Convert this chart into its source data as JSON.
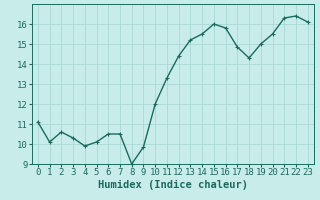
{
  "x": [
    0,
    1,
    2,
    3,
    4,
    5,
    6,
    7,
    8,
    9,
    10,
    11,
    12,
    13,
    14,
    15,
    16,
    17,
    18,
    19,
    20,
    21,
    22,
    23
  ],
  "y": [
    11.1,
    10.1,
    10.6,
    10.3,
    9.9,
    10.1,
    10.5,
    10.5,
    9.0,
    9.85,
    12.0,
    13.3,
    14.4,
    15.2,
    15.5,
    16.0,
    15.8,
    14.85,
    14.3,
    15.0,
    15.5,
    16.3,
    16.4,
    16.1
  ],
  "line_color": "#1a6b5e",
  "marker": "+",
  "marker_size": 3,
  "bg_color": "#c8ecea",
  "grid_color": "#a8d8d4",
  "xlabel": "Humidex (Indice chaleur)",
  "xlim": [
    -0.5,
    23.5
  ],
  "ylim": [
    9,
    17
  ],
  "yticks": [
    9,
    10,
    11,
    12,
    13,
    14,
    15,
    16
  ],
  "xticks": [
    0,
    1,
    2,
    3,
    4,
    5,
    6,
    7,
    8,
    9,
    10,
    11,
    12,
    13,
    14,
    15,
    16,
    17,
    18,
    19,
    20,
    21,
    22,
    23
  ],
  "tick_label_fontsize": 6.5,
  "xlabel_fontsize": 7.5,
  "line_width": 1.0
}
